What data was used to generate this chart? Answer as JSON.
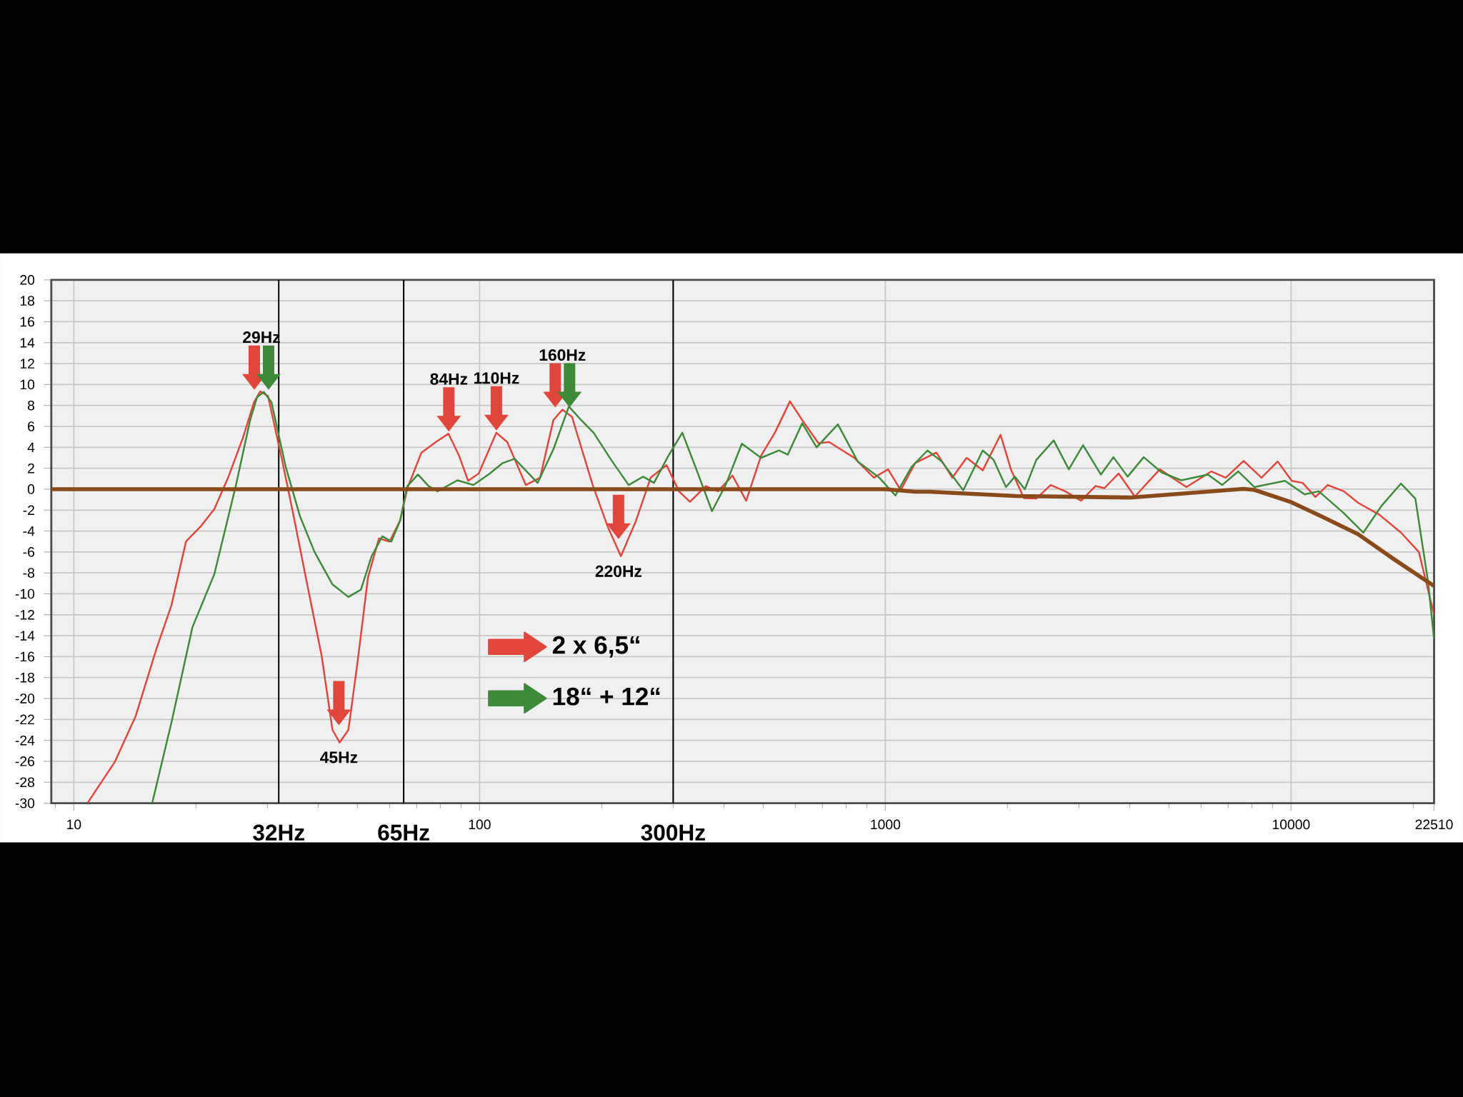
{
  "chart_data": {
    "type": "line",
    "xlim": [
      8.8,
      22510
    ],
    "ylim": [
      -30,
      20
    ],
    "log": "x",
    "grid": true,
    "legend": "bottom left",
    "xticks": [
      {
        "value": 9,
        "label": null
      },
      10,
      {
        "value": 20,
        "label": null
      },
      {
        "value": 30,
        "label": null
      },
      {
        "value": 40,
        "label": null
      },
      {
        "value": 50,
        "label": null
      },
      {
        "value": 60,
        "label": null
      },
      {
        "value": 70,
        "label": null
      },
      {
        "value": 80,
        "label": null
      },
      {
        "value": 90,
        "label": null
      },
      100,
      {
        "value": 200,
        "label": null
      },
      {
        "value": 300,
        "label": null
      },
      {
        "value": 400,
        "label": null
      },
      {
        "value": 500,
        "label": null
      },
      {
        "value": 600,
        "label": null
      },
      {
        "value": 700,
        "label": null
      },
      {
        "value": 800,
        "label": null
      },
      {
        "value": 900,
        "label": null
      },
      1000,
      {
        "value": 2000,
        "label": null
      },
      {
        "value": 3000,
        "label": null
      },
      {
        "value": 4000,
        "label": null
      },
      {
        "value": 5000,
        "label": null
      },
      {
        "value": 6000,
        "label": null
      },
      {
        "value": 7000,
        "label": null
      },
      {
        "value": 8000,
        "label": null
      },
      {
        "value": 9000,
        "label": null
      },
      10000,
      {
        "value": 20000,
        "label": null
      },
      22510
    ],
    "yticks": [
      -30,
      -28,
      -26,
      -24,
      -22,
      -20,
      -18,
      -16,
      -14,
      -12,
      -10,
      -8,
      -6,
      -4,
      -2,
      0,
      2,
      4,
      6,
      8,
      10,
      12,
      14,
      16,
      18,
      20
    ],
    "series": [
      {
        "name": "2 x 6,5“",
        "color": "#e0463c",
        "x": [
          10.8,
          12.6,
          14.2,
          16.0,
          17.4,
          18.9,
          20.5,
          22.2,
          24.0,
          26.1,
          27.8,
          28.8,
          30.1,
          32.6,
          34.7,
          37.6,
          40.8,
          43.4,
          45.2,
          47.5,
          50.0,
          53.1,
          56.5,
          60.0,
          63.7,
          66.4,
          71.9,
          78.0,
          83.8,
          89.0,
          93.7,
          99.5,
          110,
          117,
          130,
          141,
          152,
          160,
          169,
          190,
          207,
          223,
          243,
          264,
          289,
          310,
          330,
          361,
          387,
          420,
          454,
          494,
          536,
          582,
          624,
          684,
          727,
          838,
          937,
          1016,
          1091,
          1184,
          1336,
          1463,
          1586,
          1738,
          1923,
          2043,
          2196,
          2355,
          2556,
          2774,
          3037,
          3296,
          3467,
          3760,
          4120,
          4748,
          5521,
          6363,
          6902,
          7640,
          8455,
          9268,
          10040,
          10680,
          11480,
          12310,
          13490,
          14630,
          16520,
          18660,
          20650,
          22510
        ],
        "values": [
          -30.0,
          -26.1,
          -21.7,
          -15.2,
          -11.1,
          -5.0,
          -3.6,
          -1.9,
          1.1,
          4.9,
          8.3,
          9.35,
          8.9,
          2.8,
          -2.3,
          -9.1,
          -15.9,
          -23.0,
          -24.2,
          -23.0,
          -16.6,
          -8.4,
          -4.7,
          -5.0,
          -3.0,
          0.1,
          3.5,
          4.5,
          5.3,
          3.2,
          0.8,
          1.5,
          5.4,
          4.5,
          0.4,
          1.1,
          6.6,
          7.6,
          6.9,
          0.4,
          -3.6,
          -6.4,
          -3.0,
          1.1,
          2.3,
          -0.2,
          -1.2,
          0.3,
          -0.2,
          1.3,
          -1.1,
          3.2,
          5.5,
          8.4,
          6.6,
          4.4,
          4.5,
          3.0,
          1.1,
          1.9,
          -0.1,
          2.5,
          3.5,
          1.1,
          3.0,
          1.8,
          5.2,
          1.8,
          -0.85,
          -0.9,
          0.4,
          -0.2,
          -1.1,
          0.3,
          0.1,
          1.5,
          -0.7,
          1.9,
          0.2,
          1.7,
          1.1,
          2.7,
          1.1,
          2.65,
          0.8,
          0.6,
          -0.75,
          0.4,
          -0.2,
          -1.3,
          -2.45,
          -4.15,
          -6.0,
          -12.0
        ]
      },
      {
        "name": "18“ + 12“",
        "color": "#3e8a3a",
        "x": [
          15.6,
          17.4,
          19.6,
          22.2,
          25.1,
          27.2,
          28.3,
          29.4,
          30.7,
          33.3,
          36.1,
          39.2,
          43.4,
          47.5,
          51.0,
          54.2,
          57.6,
          60.6,
          63.7,
          66.4,
          70.5,
          74.9,
          78.8,
          88.2,
          96.6,
          106,
          114,
          122,
          139,
          152,
          166,
          178,
          191,
          211,
          233,
          253,
          269,
          292,
          316,
          343,
          374,
          404,
          443,
          494,
          547,
          575,
          624,
          677,
          764,
          855,
          966,
          1059,
          1159,
          1270,
          1377,
          1556,
          1738,
          1849,
          1983,
          2085,
          2207,
          2356,
          2600,
          2833,
          3071,
          3398,
          3649,
          3956,
          4333,
          4797,
          5360,
          6238,
          6764,
          7412,
          8126,
          9655,
          10800,
          11700,
          13490,
          15070,
          16700,
          18660,
          20240,
          21730,
          22510
        ],
        "values": [
          -30.0,
          -22.3,
          -13.2,
          -8.1,
          0.4,
          6.6,
          8.8,
          9.3,
          8.3,
          2.1,
          -2.6,
          -6.0,
          -9.1,
          -10.3,
          -9.6,
          -6.4,
          -4.5,
          -5.0,
          -3.0,
          0.3,
          1.4,
          0.3,
          -0.2,
          0.85,
          0.4,
          1.5,
          2.5,
          2.9,
          0.6,
          3.8,
          7.9,
          6.6,
          5.4,
          2.8,
          0.4,
          1.2,
          0.6,
          3.2,
          5.4,
          1.8,
          -2.1,
          0.4,
          4.35,
          3.0,
          3.7,
          3.3,
          6.3,
          4.0,
          6.2,
          2.65,
          1.1,
          -0.6,
          2.1,
          3.7,
          2.65,
          -0.1,
          3.7,
          2.8,
          0.2,
          1.2,
          0.0,
          2.8,
          4.66,
          1.9,
          4.2,
          1.4,
          3.06,
          1.2,
          3.06,
          1.6,
          0.85,
          1.4,
          0.4,
          1.7,
          0.2,
          0.8,
          -0.5,
          -0.2,
          -2.3,
          -4.15,
          -1.6,
          0.54,
          -0.9,
          -8.7,
          -14.35
        ]
      },
      {
        "color": "#8a4b1c",
        "x": [
          8.8,
          1000,
          1184,
          1282,
          2093,
          4009,
          7640,
          8126,
          10040,
          11880,
          14630,
          17940,
          22510
        ],
        "values": [
          0,
          0,
          -0.24,
          -0.24,
          -0.65,
          -0.8,
          0.03,
          -0.07,
          -1.26,
          -2.6,
          -4.3,
          -6.7,
          -9.25
        ]
      }
    ],
    "ref_lines": [
      {
        "axis": "x",
        "value": 32,
        "label": "32Hz",
        "color": "#000000"
      },
      {
        "axis": "x",
        "value": 65,
        "label": "65Hz",
        "color": "#000000"
      },
      {
        "axis": "x",
        "value": 300,
        "label": "300Hz",
        "color": "#000000"
      }
    ],
    "annotations": [
      {
        "text": "29Hz",
        "x": 29,
        "y": 9.3
      },
      {
        "text": "84Hz",
        "x": 84,
        "y": 5.3
      },
      {
        "text": "110Hz",
        "x": 110,
        "y": 5.4
      },
      {
        "text": "160Hz",
        "x": 160,
        "y": 7.6
      },
      {
        "text": "220Hz",
        "x": 220,
        "y": -6.4
      },
      {
        "text": "45Hz",
        "x": 45,
        "y": -24.2
      }
    ]
  }
}
